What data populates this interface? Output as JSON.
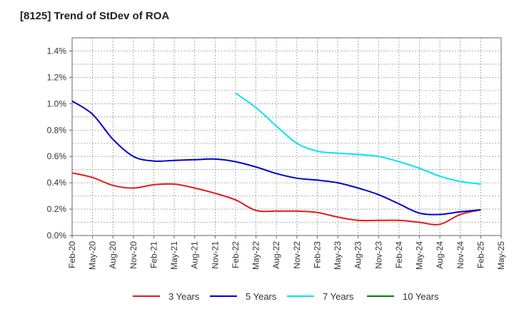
{
  "chart_data": {
    "type": "line",
    "title": "[8125]  Trend of StDev of ROA",
    "xlabel": "",
    "ylabel": "",
    "x": [
      "Feb-20",
      "May-20",
      "Aug-20",
      "Nov-20",
      "Feb-21",
      "May-21",
      "Aug-21",
      "Nov-21",
      "Feb-22",
      "May-22",
      "Aug-22",
      "Nov-22",
      "Feb-23",
      "May-23",
      "Aug-23",
      "Nov-23",
      "Feb-24",
      "May-24",
      "Aug-24",
      "Nov-24",
      "Feb-25",
      "May-25"
    ],
    "y_ticks": [
      "0.0%",
      "0.2%",
      "0.4%",
      "0.6%",
      "0.8%",
      "1.0%",
      "1.2%",
      "1.4%"
    ],
    "ylim": [
      0,
      1.5
    ],
    "y_unit": "%",
    "grid": true,
    "legend_position": "bottom",
    "series": [
      {
        "name": "3 Years",
        "color": "#e31a1c",
        "values": [
          0.475,
          0.44,
          0.38,
          0.36,
          0.385,
          0.39,
          0.36,
          0.32,
          0.27,
          0.19,
          0.185,
          0.185,
          0.175,
          0.14,
          0.115,
          0.115,
          0.115,
          0.1,
          0.085,
          0.16,
          0.195,
          null
        ]
      },
      {
        "name": "5 Years",
        "color": "#0000cc",
        "values": [
          1.02,
          0.92,
          0.73,
          0.6,
          0.565,
          0.57,
          0.575,
          0.58,
          0.56,
          0.52,
          0.47,
          0.435,
          0.42,
          0.4,
          0.36,
          0.31,
          0.24,
          0.17,
          0.16,
          0.18,
          0.195,
          null
        ]
      },
      {
        "name": "7 Years",
        "color": "#00e5ee",
        "values": [
          null,
          null,
          null,
          null,
          null,
          null,
          null,
          null,
          1.08,
          0.97,
          0.83,
          0.7,
          0.64,
          0.625,
          0.615,
          0.6,
          0.56,
          0.51,
          0.45,
          0.41,
          0.39,
          null
        ]
      },
      {
        "name": "10 Years",
        "color": "#008000",
        "values": [
          null,
          null,
          null,
          null,
          null,
          null,
          null,
          null,
          null,
          null,
          null,
          null,
          null,
          null,
          null,
          null,
          null,
          null,
          null,
          null,
          null,
          null
        ]
      }
    ]
  }
}
